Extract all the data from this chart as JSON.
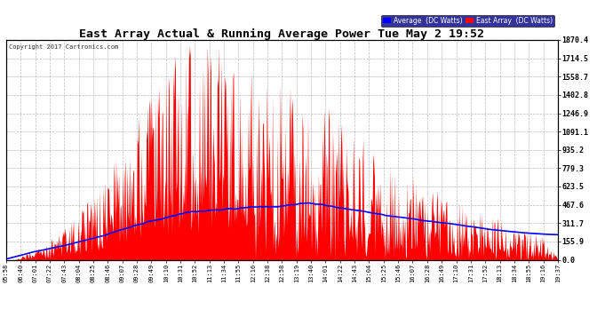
{
  "title": "East Array Actual & Running Average Power Tue May 2 19:52",
  "copyright": "Copyright 2017 Cartronics.com",
  "ylabel_right_values": [
    0.0,
    155.9,
    311.7,
    467.6,
    623.5,
    779.3,
    935.2,
    1091.1,
    1246.9,
    1402.8,
    1558.7,
    1714.5,
    1870.4
  ],
  "ymax": 1870.4,
  "ymin": 0.0,
  "x_labels": [
    "05:58",
    "06:40",
    "07:01",
    "07:22",
    "07:43",
    "08:04",
    "08:25",
    "08:46",
    "09:07",
    "09:28",
    "09:49",
    "10:10",
    "10:31",
    "10:52",
    "11:13",
    "11:34",
    "11:55",
    "12:16",
    "12:38",
    "12:58",
    "13:19",
    "13:40",
    "14:01",
    "14:22",
    "14:43",
    "15:04",
    "15:25",
    "15:46",
    "16:07",
    "16:28",
    "16:49",
    "17:10",
    "17:31",
    "17:52",
    "18:13",
    "18:34",
    "18:55",
    "19:16",
    "19:37"
  ],
  "background_color": "#ffffff",
  "plot_bg_color": "#ffffff",
  "grid_color": "#aaaaaa",
  "bar_color": "#ff0000",
  "avg_color": "#0000ff",
  "title_color": "#000000",
  "tick_color": "#000000",
  "legend_avg_bg": "#0000ff",
  "legend_east_bg": "#ff0000",
  "legend_text_color": "#ffffff",
  "figwidth": 6.9,
  "figheight": 3.75,
  "dpi": 100
}
